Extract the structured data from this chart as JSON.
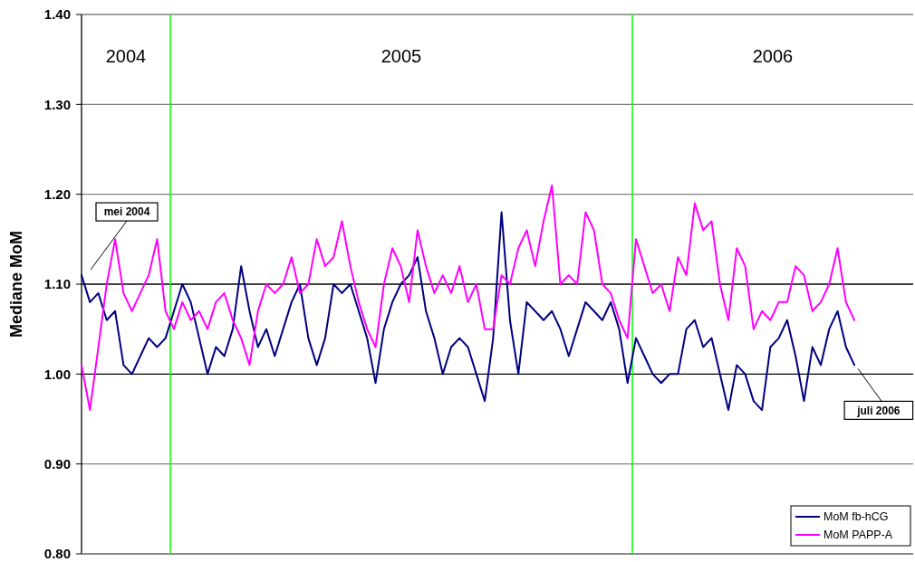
{
  "chart_data": {
    "type": "line",
    "ylabel": "Mediane MoM",
    "categories": [
      null,
      null,
      null,
      null,
      null,
      null,
      null,
      null,
      null,
      null,
      null,
      null,
      null,
      null,
      null,
      null,
      null,
      null,
      null,
      null,
      null,
      null,
      null,
      null,
      null,
      null,
      null,
      null,
      null,
      null,
      null,
      null,
      null,
      null,
      null,
      null,
      null,
      null,
      null,
      null,
      null,
      null,
      null,
      null,
      null,
      null,
      null,
      null,
      null,
      null,
      null,
      null,
      null,
      null,
      null,
      null,
      null,
      null,
      null,
      null,
      null,
      null,
      null,
      null,
      null,
      null,
      null,
      null,
      null,
      null,
      null,
      null,
      null,
      null,
      null,
      null,
      null,
      null,
      null,
      null,
      null,
      null,
      null,
      null,
      null,
      null,
      null,
      null,
      null,
      null,
      null,
      null,
      null,
      null,
      null,
      null,
      null,
      null,
      null,
      null
    ],
    "series": [
      {
        "name": "MoM fb-hCG",
        "color": "#000080",
        "values": [
          1.11,
          1.08,
          1.09,
          1.06,
          1.07,
          1.01,
          1.0,
          1.02,
          1.04,
          1.03,
          1.04,
          1.07,
          1.1,
          1.08,
          1.04,
          1.0,
          1.03,
          1.02,
          1.05,
          1.12,
          1.07,
          1.03,
          1.05,
          1.02,
          1.05,
          1.08,
          1.1,
          1.04,
          1.01,
          1.04,
          1.1,
          1.09,
          1.1,
          1.07,
          1.04,
          0.99,
          1.05,
          1.08,
          1.1,
          1.11,
          1.13,
          1.07,
          1.04,
          1.0,
          1.03,
          1.04,
          1.03,
          1.0,
          0.97,
          1.04,
          1.18,
          1.06,
          1.0,
          1.08,
          1.07,
          1.06,
          1.07,
          1.05,
          1.02,
          1.05,
          1.08,
          1.07,
          1.06,
          1.08,
          1.05,
          0.99,
          1.04,
          1.02,
          1.0,
          0.99,
          1.0,
          1.0,
          1.05,
          1.06,
          1.03,
          1.04,
          1.0,
          0.96,
          1.01,
          1.0,
          0.97,
          0.96,
          1.03,
          1.04,
          1.06,
          1.02,
          0.97,
          1.03,
          1.01,
          1.05,
          1.07,
          1.03,
          1.01,
          null,
          null,
          null,
          null,
          null,
          null,
          null
        ]
      },
      {
        "name": "MoM PAPP-A",
        "color": "#ff00ff",
        "values": [
          1.01,
          0.96,
          1.03,
          1.1,
          1.15,
          1.09,
          1.07,
          1.09,
          1.11,
          1.15,
          1.07,
          1.05,
          1.08,
          1.06,
          1.07,
          1.05,
          1.08,
          1.09,
          1.06,
          1.04,
          1.01,
          1.07,
          1.1,
          1.09,
          1.1,
          1.13,
          1.09,
          1.1,
          1.15,
          1.12,
          1.13,
          1.17,
          1.12,
          1.08,
          1.05,
          1.03,
          1.1,
          1.14,
          1.12,
          1.08,
          1.16,
          1.12,
          1.09,
          1.11,
          1.09,
          1.12,
          1.08,
          1.1,
          1.05,
          1.05,
          1.11,
          1.1,
          1.14,
          1.16,
          1.12,
          1.17,
          1.21,
          1.1,
          1.11,
          1.1,
          1.18,
          1.16,
          1.1,
          1.09,
          1.06,
          1.04,
          1.15,
          1.12,
          1.09,
          1.1,
          1.07,
          1.13,
          1.11,
          1.19,
          1.16,
          1.17,
          1.1,
          1.06,
          1.14,
          1.12,
          1.05,
          1.07,
          1.06,
          1.08,
          1.08,
          1.12,
          1.11,
          1.07,
          1.08,
          1.1,
          1.14,
          1.08,
          1.06,
          null,
          null,
          null,
          null,
          null,
          null,
          null
        ]
      }
    ],
    "ylim": [
      0.8,
      1.4
    ],
    "yticks": [
      {
        "value": 0.8,
        "label": "0.80"
      },
      {
        "value": 0.9,
        "label": "0.90"
      },
      {
        "value": 1.0,
        "label": "1.00"
      },
      {
        "value": 1.1,
        "label": "1.10"
      },
      {
        "value": 1.2,
        "label": "1.20"
      },
      {
        "value": 1.3,
        "label": "1.30"
      },
      {
        "value": 1.4,
        "label": "1.40"
      }
    ],
    "grid": "y",
    "tick_labels": "y",
    "legend": "bottom right",
    "annotations": [
      "2004",
      "2005",
      "2006",
      "mei 2004",
      "juli 2006"
    ]
  }
}
